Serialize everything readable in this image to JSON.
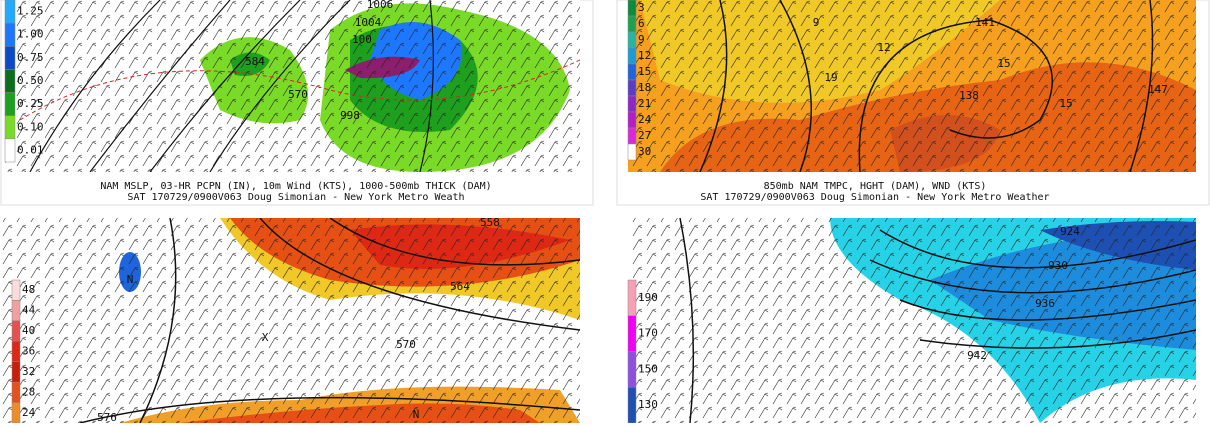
{
  "panels": [
    {
      "legend": [
        "1.25",
        "1.00",
        "0.75",
        "0.50",
        "0.25",
        "0.10",
        "0.01"
      ],
      "legend_colors": [
        "#22aaff",
        "#1e78ff",
        "#0a4cc8",
        "#0a6e1e",
        "#1ea01e",
        "#7ada28",
        "#ffffff"
      ],
      "labels": [
        "1006",
        "1004",
        "100",
        "584",
        "570",
        "998"
      ],
      "caption": [
        "NAM MSLP, 03-HR PCPN (IN), 10m Wind (KTS), 1000-500mb THICK (DAM)",
        "SAT 170729/0900V063 Doug Simonian - New York Metro Weath"
      ]
    },
    {
      "legend": [
        "3",
        "6",
        "9",
        "12",
        "15",
        "18",
        "21",
        "24",
        "27",
        "30"
      ],
      "legend_colors": [
        "#0a8c3c",
        "#1ea050",
        "#28b4a0",
        "#1e9bd2",
        "#1e64dc",
        "#5a3cc8",
        "#8c28c8",
        "#b41ec8",
        "#dc28dc",
        "#ffffff"
      ],
      "labels": [
        "9",
        "12",
        "141",
        "15",
        "19",
        "138",
        "15",
        "147"
      ],
      "caption": [
        "850mb NAM TMPC, HGHT (DAM), WND (KTS)",
        "SAT 170729/0900V063 Doug Simonian - New York Metro Weather"
      ]
    },
    {
      "legend": [
        "48",
        "44",
        "40",
        "36",
        "32",
        "28",
        "24"
      ],
      "legend_colors": [
        "#fadcdc",
        "#f0a0a0",
        "#e65050",
        "#dc2814",
        "#c81e0a",
        "#e6501e",
        "#f08c28"
      ],
      "labels": [
        "558",
        "564",
        "570",
        "576",
        "N",
        "X",
        "N"
      ],
      "caption": []
    },
    {
      "legend": [
        "190",
        "170",
        "150",
        "130"
      ],
      "legend_colors": [
        "#f5a0b4",
        "#f000f0",
        "#8c50dc",
        "#1e50b4"
      ],
      "labels": [
        "924",
        "930",
        "936",
        "942"
      ],
      "caption": []
    }
  ]
}
